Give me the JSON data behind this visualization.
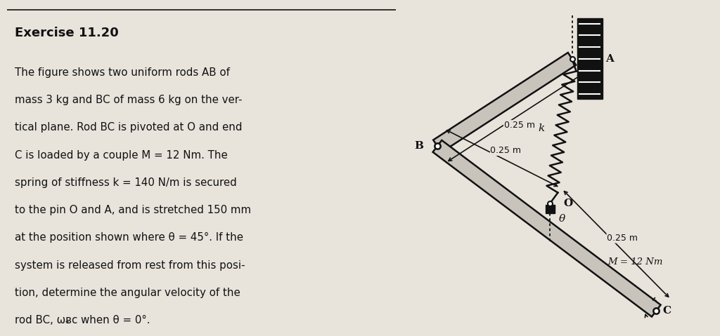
{
  "bg_color": "#e8e4dc",
  "text_bg": "#e8e4dc",
  "title_text": "Exercise 11.20",
  "line1": "The figure shows two uniform rods AB of",
  "line2": "mass 3 kg and BC of mass 6 kg on the ver-",
  "line3": "tical plane. Rod BC is pivoted at O and end",
  "line4": "C is loaded by a couple M = 12 Nm. The",
  "line5": "spring of stiffness k = 140 N/m is secured",
  "line6": "to the pin O and A, and is stretched 150 mm",
  "line7": "at the position shown where θ = 45°. If the",
  "line8": "system is released from rest from this posi-",
  "line9": "tion, determine the angular velocity of the",
  "line10": "rod BC, ωᴃᴄ when θ = 0°.",
  "fig_width": 10.24,
  "fig_height": 4.79,
  "lc": "#111111",
  "label_025_AB": "0.25 m",
  "label_025_BO": "0.25 m",
  "label_025_OC": "0.25 m",
  "label_A": "A",
  "label_B": "B",
  "label_O": "O",
  "label_C": "C",
  "label_k": "k",
  "label_theta": "θ",
  "label_M": "M = 12 Nm"
}
